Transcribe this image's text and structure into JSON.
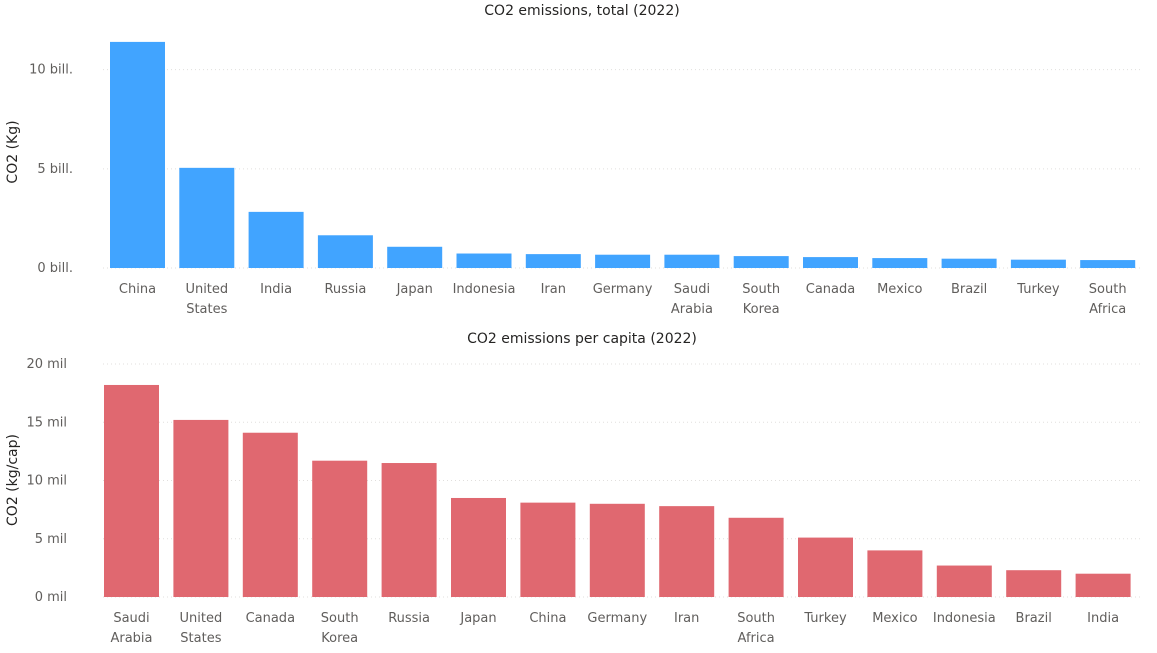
{
  "chart_data": [
    {
      "type": "bar",
      "title": "CO2 emissions, total (2022)",
      "xlabel": "",
      "ylabel": "CO2 (Kg)",
      "color": "#41a4ff",
      "ylim": [
        0,
        12000000000
      ],
      "yticks": [
        0,
        5000000000,
        10000000000
      ],
      "ytick_labels": [
        "0 bill.",
        "5 bill.",
        "10 bill."
      ],
      "grid": true,
      "categories": [
        [
          "China"
        ],
        [
          "United",
          "States"
        ],
        [
          "India"
        ],
        [
          "Russia"
        ],
        [
          "Japan"
        ],
        [
          "Indonesia"
        ],
        [
          "Iran"
        ],
        [
          "Germany"
        ],
        [
          "Saudi",
          "Arabia"
        ],
        [
          "South",
          "Korea"
        ],
        [
          "Canada"
        ],
        [
          "Mexico"
        ],
        [
          "Brazil"
        ],
        [
          "Turkey"
        ],
        [
          "South",
          "Africa"
        ]
      ],
      "values": [
        11400000000,
        5050000000,
        2830000000,
        1650000000,
        1070000000,
        730000000,
        700000000,
        670000000,
        670000000,
        600000000,
        550000000,
        500000000,
        470000000,
        420000000,
        400000000
      ]
    },
    {
      "type": "bar",
      "title": "CO2 emissions per capita (2022)",
      "xlabel": "",
      "ylabel": "CO2 (kg/cap)",
      "color": "#e06870",
      "ylim": [
        0,
        20000000
      ],
      "yticks": [
        0,
        5000000,
        10000000,
        15000000,
        20000000
      ],
      "ytick_labels": [
        "0 mil",
        "5 mil",
        "10 mil",
        "15 mil",
        "20 mil"
      ],
      "grid": true,
      "categories": [
        [
          "Saudi",
          "Arabia"
        ],
        [
          "United",
          "States"
        ],
        [
          "Canada"
        ],
        [
          "South",
          "Korea"
        ],
        [
          "Russia"
        ],
        [
          "Japan"
        ],
        [
          "China"
        ],
        [
          "Germany"
        ],
        [
          "Iran"
        ],
        [
          "South",
          "Africa"
        ],
        [
          "Turkey"
        ],
        [
          "Mexico"
        ],
        [
          "Indonesia"
        ],
        [
          "Brazil"
        ],
        [
          "India"
        ]
      ],
      "values": [
        18200000,
        15200000,
        14100000,
        11700000,
        11500000,
        8500000,
        8100000,
        8000000,
        7800000,
        6800000,
        5100000,
        4000000,
        2700000,
        2300000,
        2000000
      ]
    }
  ]
}
